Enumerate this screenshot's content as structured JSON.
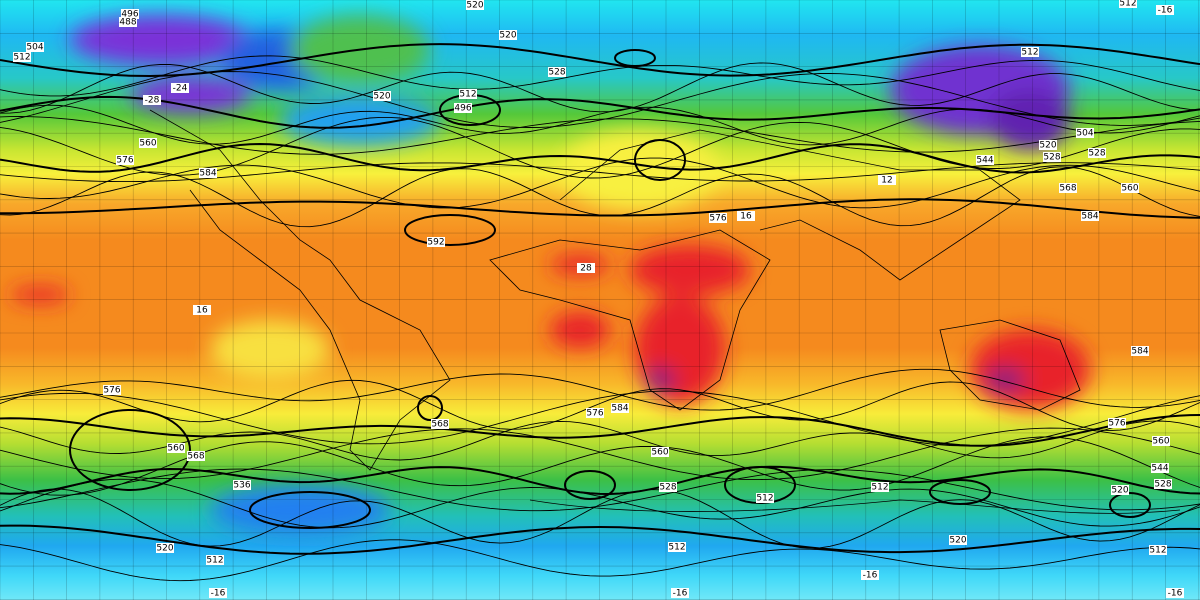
{
  "labels": [
    "520",
    "512",
    "-16",
    "496",
    "488",
    "504",
    "512",
    "520",
    "528",
    "512",
    "496",
    "520",
    "512",
    "520",
    "528",
    "544",
    "504",
    "528",
    "568",
    "560",
    "584",
    "576",
    "560",
    "584",
    "592",
    "576",
    "28",
    "16",
    "576",
    "584",
    "568",
    "560",
    "528",
    "512",
    "512",
    "520",
    "520",
    "512",
    "576",
    "584",
    "512",
    "544",
    "560",
    "536",
    "528",
    "520",
    "512",
    "-16",
    "-16",
    "-16",
    "-16",
    "576",
    "560",
    "568",
    "12",
    "16",
    "-24",
    "-28"
  ]
}
